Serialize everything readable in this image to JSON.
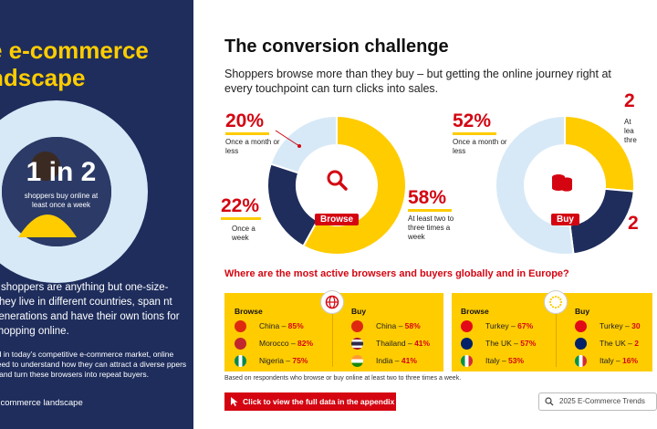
{
  "left": {
    "title": "e e-commerce\nndscape",
    "stat_big": "1 in 2",
    "stat_small": "shoppers buy online at least once a week",
    "para": "s shoppers are anything but one-size- They live in different countries, span nt generations and have their own tions for shopping online.",
    "para2": "ed in today’s competitive e-commerce market, online need to understand how they can attract a diverse ppers – and turn these browsers into repeat buyers.",
    "footer": "e-commerce landscape",
    "donut_fraction": 0.5
  },
  "main": {
    "title": "The conversion challenge",
    "subtitle": "Shoppers browse more than they buy – but getting the online journey right at every touchpoint can turn clicks into sales."
  },
  "browse": {
    "center": "Browse",
    "icon": "magnifier-icon",
    "top_value": "20%",
    "top_label": "Once a month or less",
    "left_value": "22%",
    "left_label": "Once a week",
    "right_value": "58%",
    "right_label": "At least two to three times a week"
  },
  "buy": {
    "center": "Buy",
    "icon": "coins-icon",
    "top_value": "52%",
    "top_label": "Once a month or less",
    "right_top_value": "2",
    "right_top_label": "At lea thre",
    "right_bottom_value": "2"
  },
  "chart_data": [
    {
      "type": "pie",
      "title": "Browse",
      "series": [
        {
          "name": "At least two to three times a week",
          "value": 58
        },
        {
          "name": "Once a week",
          "value": 22
        },
        {
          "name": "Once a month or less",
          "value": 20
        }
      ]
    },
    {
      "type": "pie",
      "title": "Buy",
      "series": [
        {
          "name": "Once a month or less",
          "value": 52
        }
      ]
    }
  ],
  "question": "Where are the most active browsers and buyers globally and in Europe?",
  "global": {
    "browse_head": "Browse",
    "buy_head": "Buy",
    "browse": [
      {
        "country": "China",
        "pct": "85%",
        "flag": "china"
      },
      {
        "country": "Morocco",
        "pct": "82%",
        "flag": "morocco"
      },
      {
        "country": "Nigeria",
        "pct": "75%",
        "flag": "nigeria"
      }
    ],
    "buy": [
      {
        "country": "China",
        "pct": "58%",
        "flag": "china"
      },
      {
        "country": "Thailand",
        "pct": "41%",
        "flag": "thailand"
      },
      {
        "country": "India",
        "pct": "41%",
        "flag": "india"
      }
    ]
  },
  "europe": {
    "browse_head": "Browse",
    "buy_head": "Buy",
    "browse": [
      {
        "country": "Turkey",
        "pct": "67%",
        "flag": "turkey"
      },
      {
        "country": "The UK",
        "pct": "57%",
        "flag": "uk"
      },
      {
        "country": "Italy",
        "pct": "53%",
        "flag": "italy"
      }
    ],
    "buy": [
      {
        "country": "Turkey",
        "pct": "30",
        "flag": "turkey"
      },
      {
        "country": "The UK",
        "pct": "2",
        "flag": "uk"
      },
      {
        "country": "Italy",
        "pct": "16%",
        "flag": "italy"
      }
    ]
  },
  "note": "Based on respondents who browse or buy online at least two to three times a week.",
  "cta": "Click to view the full data in the appendix",
  "search": "2025 E-Commerce Trends",
  "colors": {
    "navy": "#1e2d5c",
    "yellow": "#ffcc00",
    "red": "#d40511",
    "light_blue": "#d7e9f7"
  }
}
